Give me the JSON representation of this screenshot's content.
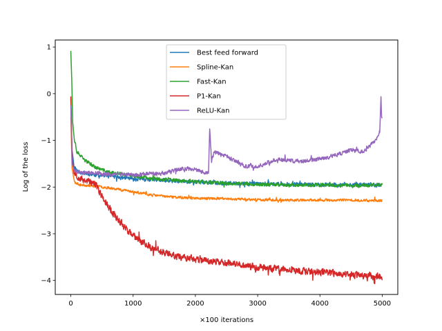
{
  "chart_data": {
    "type": "line",
    "title": "",
    "xlabel": "×100 iterations",
    "ylabel": "Log of the loss",
    "xlim": [
      -250,
      5250
    ],
    "ylim": [
      -4.3,
      1.15
    ],
    "xticks": [
      0,
      1000,
      2000,
      3000,
      4000,
      5000
    ],
    "xtick_labels": [
      "0",
      "1000",
      "2000",
      "3000",
      "4000",
      "5000"
    ],
    "yticks": [
      1,
      0,
      -1,
      -2,
      -3,
      -4
    ],
    "ytick_labels": [
      "1",
      "0",
      "−1",
      "−2",
      "−3",
      "−4"
    ],
    "grid": false,
    "legend_position": "upper-center",
    "series": [
      {
        "name": "Best feed forward",
        "color": "#1f77b4",
        "noise": 0.04,
        "seed": 11,
        "points": [
          [
            0,
            -0.1
          ],
          [
            20,
            -1.2
          ],
          [
            50,
            -1.55
          ],
          [
            100,
            -1.65
          ],
          [
            200,
            -1.7
          ],
          [
            400,
            -1.74
          ],
          [
            700,
            -1.78
          ],
          [
            1000,
            -1.82
          ],
          [
            1500,
            -1.86
          ],
          [
            2000,
            -1.89
          ],
          [
            2500,
            -1.92
          ],
          [
            3000,
            -1.93
          ],
          [
            3500,
            -1.94
          ],
          [
            4000,
            -1.95
          ],
          [
            4500,
            -1.95
          ],
          [
            5000,
            -1.96
          ]
        ]
      },
      {
        "name": "Spline-Kan",
        "color": "#ff7f0e",
        "noise": 0.025,
        "seed": 23,
        "points": [
          [
            0,
            -0.5
          ],
          [
            20,
            -1.6
          ],
          [
            60,
            -1.9
          ],
          [
            150,
            -1.95
          ],
          [
            400,
            -1.98
          ],
          [
            700,
            -2.03
          ],
          [
            1000,
            -2.1
          ],
          [
            1300,
            -2.17
          ],
          [
            1700,
            -2.22
          ],
          [
            2000,
            -2.24
          ],
          [
            2500,
            -2.25
          ],
          [
            3000,
            -2.27
          ],
          [
            3500,
            -2.28
          ],
          [
            4000,
            -2.28
          ],
          [
            4500,
            -2.28
          ],
          [
            5000,
            -2.29
          ]
        ]
      },
      {
        "name": "Fast-Kan",
        "color": "#2ca02c",
        "noise": 0.035,
        "seed": 37,
        "points": [
          [
            0,
            0.92
          ],
          [
            15,
            0.3
          ],
          [
            30,
            -0.6
          ],
          [
            60,
            -1.05
          ],
          [
            100,
            -1.25
          ],
          [
            200,
            -1.4
          ],
          [
            400,
            -1.58
          ],
          [
            600,
            -1.68
          ],
          [
            1000,
            -1.76
          ],
          [
            1500,
            -1.84
          ],
          [
            2000,
            -1.88
          ],
          [
            2500,
            -1.92
          ],
          [
            3000,
            -1.94
          ],
          [
            4000,
            -1.96
          ],
          [
            4500,
            -1.97
          ],
          [
            5000,
            -1.95
          ]
        ]
      },
      {
        "name": "P1-Kan",
        "color": "#d62728",
        "noise": 0.07,
        "seed": 53,
        "points": [
          [
            0,
            -0.05
          ],
          [
            20,
            -1.3
          ],
          [
            50,
            -1.7
          ],
          [
            150,
            -1.82
          ],
          [
            300,
            -1.88
          ],
          [
            400,
            -1.95
          ],
          [
            500,
            -2.2
          ],
          [
            700,
            -2.6
          ],
          [
            1000,
            -3.05
          ],
          [
            1300,
            -3.3
          ],
          [
            1600,
            -3.45
          ],
          [
            2000,
            -3.55
          ],
          [
            2500,
            -3.62
          ],
          [
            3000,
            -3.72
          ],
          [
            3500,
            -3.78
          ],
          [
            4000,
            -3.82
          ],
          [
            4500,
            -3.88
          ],
          [
            5000,
            -3.92
          ]
        ]
      },
      {
        "name": "ReLU-Kan",
        "color": "#9467bd",
        "noise": 0.04,
        "seed": 71,
        "points": [
          [
            0,
            -0.25
          ],
          [
            20,
            -1.5
          ],
          [
            60,
            -1.66
          ],
          [
            200,
            -1.68
          ],
          [
            500,
            -1.72
          ],
          [
            1000,
            -1.74
          ],
          [
            1500,
            -1.7
          ],
          [
            1800,
            -1.6
          ],
          [
            2000,
            -1.62
          ],
          [
            2150,
            -1.7
          ],
          [
            2210,
            -1.68
          ],
          [
            2230,
            -0.78
          ],
          [
            2260,
            -1.45
          ],
          [
            2300,
            -1.25
          ],
          [
            2500,
            -1.35
          ],
          [
            2800,
            -1.55
          ],
          [
            3000,
            -1.56
          ],
          [
            3300,
            -1.4
          ],
          [
            3700,
            -1.45
          ],
          [
            4000,
            -1.4
          ],
          [
            4300,
            -1.3
          ],
          [
            4500,
            -1.2
          ],
          [
            4700,
            -1.25
          ],
          [
            4900,
            -1.0
          ],
          [
            4960,
            -0.8
          ],
          [
            4980,
            -0.1
          ],
          [
            4990,
            -0.5
          ],
          [
            5000,
            -0.5
          ]
        ]
      }
    ]
  }
}
